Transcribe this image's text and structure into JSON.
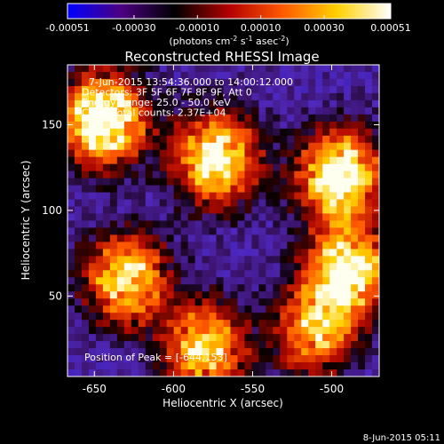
{
  "colorbar": {
    "tick_labels": [
      "-0.00051",
      "-0.00030",
      "-0.00010",
      "0.00010",
      "0.00030",
      "0.00051"
    ],
    "units_text": "(photons cm",
    "units_sup1": "-2",
    "units_mid": " s",
    "units_sup2": "-1",
    "units_end": " asec",
    "units_sup3": "-2",
    "units_close": ")",
    "colors": [
      "#0000ff",
      "#4b0080",
      "#000000",
      "#b40000",
      "#ff5a00",
      "#ffd000",
      "#ffffff"
    ]
  },
  "chart_data": {
    "type": "heatmap",
    "title": "Reconstructed RHESSI Image",
    "xlabel": "Heliocentric X (arcsec)",
    "ylabel": "Heliocentric Y (arcsec)",
    "xlim": [
      -667,
      -470
    ],
    "ylim": [
      3,
      185
    ],
    "xticks": [
      -650,
      -600,
      -550,
      -500
    ],
    "yticks": [
      50,
      100,
      150
    ],
    "info_lines": [
      "7-Jun-2015 13:54:36.000 to 14:00:12.000",
      "Detectors: 3F 5F 6F 7F 8F 9F, Att 0",
      "Energy Range: 25.0 - 50.0 keV",
      "Clean     Total counts: 2.37E+04"
    ],
    "peak_label": "Position of Peak = [-644,153]",
    "peak": [
      -644,
      153
    ],
    "bright_regions": [
      {
        "x": -644,
        "y": 153,
        "level": 1.0
      },
      {
        "x": -573,
        "y": 130,
        "level": 0.85
      },
      {
        "x": -495,
        "y": 120,
        "level": 0.9
      },
      {
        "x": -490,
        "y": 65,
        "level": 0.85
      },
      {
        "x": -630,
        "y": 60,
        "level": 0.75
      },
      {
        "x": -580,
        "y": 20,
        "level": 0.7
      },
      {
        "x": -510,
        "y": 30,
        "level": 0.6
      }
    ]
  },
  "footer": {
    "timestamp": "8-Jun-2015 05:11"
  }
}
